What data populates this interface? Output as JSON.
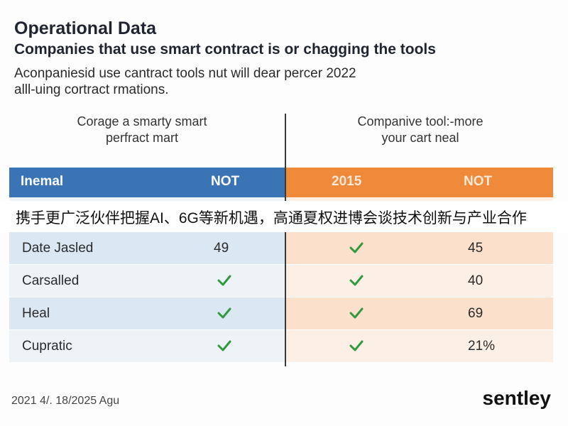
{
  "header": {
    "title": "Operational Data",
    "subtitle": "Companies that use smart contract is or chagging the tools",
    "description_line1": "Aconpaniesid use cantract tools nut will dear percer 2022",
    "description_line2": "alll-uing cortract rmations."
  },
  "columns": {
    "left_line1": "Corage a smarty smart",
    "left_line2": "perfract mart",
    "right_line1": "Companive tool:-more",
    "right_line2": "your cart neal"
  },
  "table": {
    "headers": [
      "Inemal",
      "NOT",
      "2015",
      "NOT"
    ],
    "rows": [
      {
        "label": "Date Jasled",
        "c1": "49",
        "c2": "check",
        "c3": "45"
      },
      {
        "label": "Carsalled",
        "c1": "check",
        "c2": "check",
        "c3": "40"
      },
      {
        "label": "Heal",
        "c1": "check",
        "c2": "check",
        "c3": "69"
      },
      {
        "label": "Cupratic",
        "c1": "check",
        "c2": "check",
        "c3": "21%"
      }
    ]
  },
  "banner": {
    "text": "携手更广泛伙伴把握AI、6G等新机遇，高通夏权进博会谈技术创新与产业合作"
  },
  "footer": {
    "date": "2021 4/. 18/2025 Agu",
    "brand": "sentley"
  },
  "colors": {
    "left_header": "#3b74b4",
    "right_header": "#ef8a3a",
    "check_green": "#2f9a3e"
  },
  "icons": {
    "check": "check-icon"
  }
}
